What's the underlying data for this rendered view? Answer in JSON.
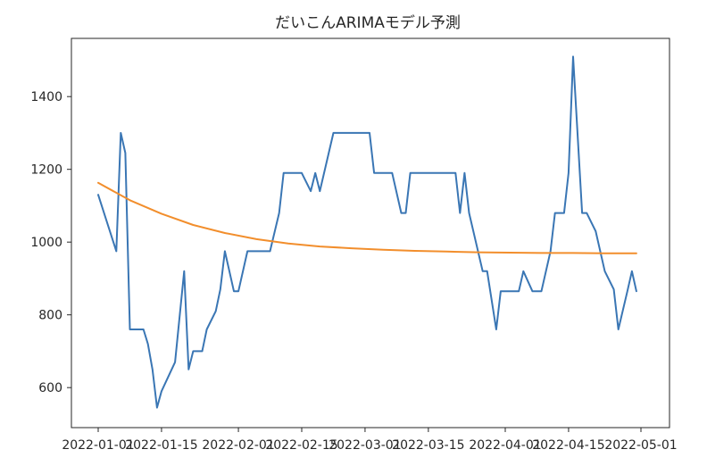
{
  "chart_data": {
    "type": "line",
    "title": "だいこんARIMAモデル予測",
    "xlabel": "",
    "ylabel": "",
    "xlim": [
      "2022-01-01",
      "2022-05-01"
    ],
    "ylim": [
      490,
      1560
    ],
    "x_ticks": [
      "2022-01-01",
      "2022-01-15",
      "2022-02-01",
      "2022-02-15",
      "2022-03-01",
      "2022-03-15",
      "2022-04-01",
      "2022-04-15",
      "2022-05-01"
    ],
    "y_ticks": [
      600,
      800,
      1000,
      1200,
      1400
    ],
    "grid": false,
    "series": [
      {
        "color": "#3a76b4",
        "points": [
          [
            "2022-01-01",
            1130
          ],
          [
            "2022-01-05",
            975
          ],
          [
            "2022-01-06",
            1300
          ],
          [
            "2022-01-07",
            1245
          ],
          [
            "2022-01-08",
            760
          ],
          [
            "2022-01-11",
            760
          ],
          [
            "2022-01-12",
            720
          ],
          [
            "2022-01-13",
            650
          ],
          [
            "2022-01-14",
            545
          ],
          [
            "2022-01-15",
            590
          ],
          [
            "2022-01-18",
            670
          ],
          [
            "2022-01-20",
            920
          ],
          [
            "2022-01-21",
            650
          ],
          [
            "2022-01-22",
            700
          ],
          [
            "2022-01-24",
            700
          ],
          [
            "2022-01-25",
            760
          ],
          [
            "2022-01-27",
            810
          ],
          [
            "2022-01-28",
            870
          ],
          [
            "2022-01-29",
            975
          ],
          [
            "2022-01-31",
            865
          ],
          [
            "2022-02-01",
            865
          ],
          [
            "2022-02-03",
            975
          ],
          [
            "2022-02-08",
            975
          ],
          [
            "2022-02-10",
            1080
          ],
          [
            "2022-02-11",
            1190
          ],
          [
            "2022-02-15",
            1190
          ],
          [
            "2022-02-17",
            1140
          ],
          [
            "2022-02-18",
            1190
          ],
          [
            "2022-02-19",
            1140
          ],
          [
            "2022-02-22",
            1300
          ],
          [
            "2022-03-02",
            1300
          ],
          [
            "2022-03-03",
            1190
          ],
          [
            "2022-03-07",
            1190
          ],
          [
            "2022-03-09",
            1080
          ],
          [
            "2022-03-10",
            1080
          ],
          [
            "2022-03-11",
            1190
          ],
          [
            "2022-03-21",
            1190
          ],
          [
            "2022-03-22",
            1080
          ],
          [
            "2022-03-23",
            1190
          ],
          [
            "2022-03-24",
            1080
          ],
          [
            "2022-03-27",
            920
          ],
          [
            "2022-03-28",
            920
          ],
          [
            "2022-03-30",
            760
          ],
          [
            "2022-03-31",
            865
          ],
          [
            "2022-04-04",
            865
          ],
          [
            "2022-04-05",
            920
          ],
          [
            "2022-04-07",
            865
          ],
          [
            "2022-04-09",
            865
          ],
          [
            "2022-04-11",
            975
          ],
          [
            "2022-04-12",
            1080
          ],
          [
            "2022-04-14",
            1080
          ],
          [
            "2022-04-15",
            1190
          ],
          [
            "2022-04-16",
            1510
          ],
          [
            "2022-04-18",
            1080
          ],
          [
            "2022-04-19",
            1080
          ],
          [
            "2022-04-21",
            1030
          ],
          [
            "2022-04-23",
            920
          ],
          [
            "2022-04-25",
            870
          ],
          [
            "2022-04-26",
            760
          ],
          [
            "2022-04-28",
            865
          ],
          [
            "2022-04-29",
            920
          ],
          [
            "2022-04-30",
            865
          ]
        ]
      },
      {
        "color": "#f28e2c",
        "points": [
          [
            "2022-01-01",
            1163
          ],
          [
            "2022-01-08",
            1115
          ],
          [
            "2022-01-15",
            1078
          ],
          [
            "2022-01-22",
            1047
          ],
          [
            "2022-01-29",
            1025
          ],
          [
            "2022-02-05",
            1008
          ],
          [
            "2022-02-12",
            996
          ],
          [
            "2022-02-19",
            988
          ],
          [
            "2022-02-26",
            983
          ],
          [
            "2022-03-05",
            979
          ],
          [
            "2022-03-12",
            976
          ],
          [
            "2022-03-19",
            974
          ],
          [
            "2022-03-26",
            972
          ],
          [
            "2022-04-02",
            971
          ],
          [
            "2022-04-09",
            970
          ],
          [
            "2022-04-16",
            970
          ],
          [
            "2022-04-23",
            969
          ],
          [
            "2022-04-30",
            969
          ]
        ]
      }
    ]
  }
}
